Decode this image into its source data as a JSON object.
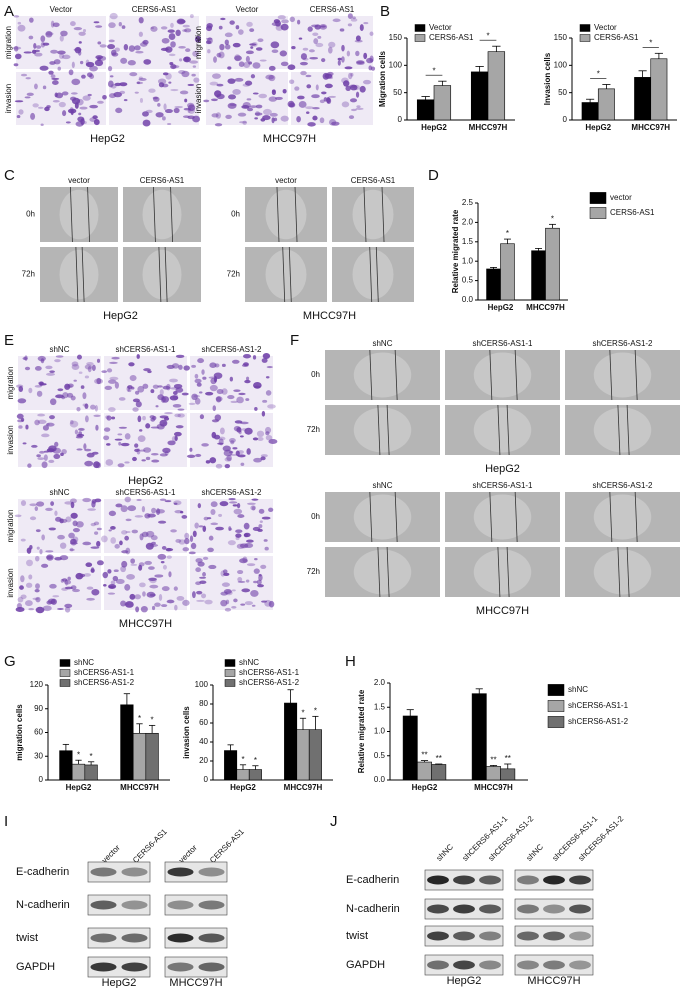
{
  "panel_letters": [
    "A",
    "B",
    "C",
    "D",
    "E",
    "F",
    "G",
    "H",
    "I",
    "J"
  ],
  "A": [
    {
      "columns": [
        "Vector",
        "CERS6-AS1"
      ],
      "rows": [
        "migration",
        "invasion"
      ],
      "caption": "HepG2"
    },
    {
      "columns": [
        "Vector",
        "CERS6-AS1"
      ],
      "rows": [
        "migration",
        "invasion"
      ],
      "caption": "MHCC97H"
    }
  ],
  "C": [
    {
      "columns": [
        "vector",
        "CERS6-AS1"
      ],
      "rows": [
        "0h",
        "72h"
      ],
      "caption": "HepG2"
    },
    {
      "columns": [
        "vector",
        "CERS6-AS1"
      ],
      "rows": [
        "0h",
        "72h"
      ],
      "caption": "MHCC97H"
    }
  ],
  "E": [
    {
      "columns": [
        "shNC",
        "shCERS6-AS1-1",
        "shCERS6-AS1-2"
      ],
      "rows": [
        "migration",
        "invasion"
      ],
      "caption": "HepG2"
    },
    {
      "columns": [
        "shNC",
        "shCERS6-AS1-1",
        "shCERS6-AS1-2"
      ],
      "rows": [
        "migration",
        "invasion"
      ],
      "caption": "MHCC97H"
    }
  ],
  "F": [
    {
      "columns": [
        "shNC",
        "shCERS6-AS1-1",
        "shCERS6-AS1-2"
      ],
      "rows": [
        "0h",
        "72h"
      ],
      "caption": "HepG2"
    },
    {
      "columns": [
        "shNC",
        "shCERS6-AS1-1",
        "shCERS6-AS1-2"
      ],
      "rows": [
        "0h",
        "72h"
      ],
      "caption": "MHCC97H"
    }
  ],
  "I": {
    "lanes": [
      "vector",
      "CERS6-AS1"
    ],
    "proteins": [
      "E-cadherin",
      "N-cadherin",
      "twist",
      "GAPDH"
    ],
    "captions": [
      "HepG2",
      "MHCC97H"
    ]
  },
  "J": {
    "lanes": [
      "shNC",
      "shCERS6-AS1-1",
      "shCERS6-AS1-2"
    ],
    "proteins": [
      "E-cadherin",
      "N-cadherin",
      "twist",
      "GAPDH"
    ],
    "captions": [
      "HepG2",
      "MHCC97H"
    ]
  },
  "chart_data": [
    {
      "type": "bar",
      "ylabel": "Migration cells",
      "categories": [
        "HepG2",
        "MHCC97H"
      ],
      "ylim": [
        0,
        150
      ],
      "yticks": [
        0,
        50,
        100,
        150
      ],
      "legend": "top",
      "annotation_style": "bracket",
      "series": [
        {
          "name": "Vector",
          "color": "#000000",
          "values": [
            37,
            88
          ],
          "errors": [
            6,
            10
          ]
        },
        {
          "name": "CERS6-AS1",
          "color": "#a6a6a6",
          "values": [
            63,
            125
          ],
          "errors": [
            8,
            10
          ],
          "annotations": [
            "*",
            "*"
          ]
        }
      ]
    },
    {
      "type": "bar",
      "ylabel": "Invasion cells",
      "categories": [
        "HepG2",
        "MHCC97H"
      ],
      "ylim": [
        0,
        150
      ],
      "yticks": [
        0,
        50,
        100,
        150
      ],
      "legend": "top",
      "annotation_style": "bracket",
      "series": [
        {
          "name": "Vector",
          "color": "#000000",
          "values": [
            32,
            78
          ],
          "errors": [
            6,
            12
          ]
        },
        {
          "name": "CERS6-AS1",
          "color": "#a6a6a6",
          "values": [
            57,
            112
          ],
          "errors": [
            8,
            10
          ],
          "annotations": [
            "*",
            "*"
          ]
        }
      ]
    },
    {
      "type": "bar",
      "ylabel": "Relative migrated rate",
      "categories": [
        "HepG2",
        "MHCC97H"
      ],
      "ylim": [
        0,
        2.5
      ],
      "yticks": [
        {
          "value": 0,
          "label": "0.0"
        },
        0.5,
        {
          "value": 1,
          "label": "1.0"
        },
        1.5,
        {
          "value": 2,
          "label": "2.0"
        },
        2.5
      ],
      "legend": "right",
      "annotation_style": "above",
      "series": [
        {
          "name": "vector",
          "color": "#000000",
          "values": [
            0.8,
            1.27
          ],
          "errors": [
            0.04,
            0.06
          ]
        },
        {
          "name": "CERS6-AS1",
          "color": "#a6a6a6",
          "values": [
            1.45,
            1.85
          ],
          "errors": [
            0.12,
            0.1
          ],
          "annotations": [
            "*",
            "*"
          ]
        }
      ]
    },
    {
      "type": "bar",
      "ylabel": "migration cells",
      "categories": [
        "HepG2",
        "MHCC97H"
      ],
      "ylim": [
        0,
        120
      ],
      "yticks": [
        0,
        30,
        60,
        90,
        120
      ],
      "legend": "top",
      "annotation_style": "above",
      "series": [
        {
          "name": "shNC",
          "color": "#000000",
          "values": [
            37,
            95
          ],
          "errors": [
            8,
            14
          ]
        },
        {
          "name": "shCERS6-AS1-1",
          "color": "#a6a6a6",
          "values": [
            20,
            59
          ],
          "errors": [
            5,
            12
          ],
          "annotations": [
            "*",
            "*"
          ]
        },
        {
          "name": "shCERS6-AS1-2",
          "color": "#707070",
          "values": [
            19,
            59
          ],
          "errors": [
            4,
            10
          ],
          "annotations": [
            "*",
            "*"
          ]
        }
      ]
    },
    {
      "type": "bar",
      "ylabel": "invasion cells",
      "categories": [
        "HepG2",
        "MHCC97H"
      ],
      "ylim": [
        0,
        100
      ],
      "yticks": [
        0,
        20,
        40,
        60,
        80,
        100
      ],
      "legend": "top",
      "annotation_style": "above",
      "series": [
        {
          "name": "shNC",
          "color": "#000000",
          "values": [
            31,
            81
          ],
          "errors": [
            6,
            14
          ]
        },
        {
          "name": "shCERS6-AS1-1",
          "color": "#a6a6a6",
          "values": [
            11,
            53
          ],
          "errors": [
            5,
            12
          ],
          "annotations": [
            "*",
            "*"
          ]
        },
        {
          "name": "shCERS6-AS1-2",
          "color": "#707070",
          "values": [
            11,
            53
          ],
          "errors": [
            4,
            14
          ],
          "annotations": [
            "*",
            "*"
          ]
        }
      ]
    },
    {
      "type": "bar",
      "ylabel": "Relative migrated rate",
      "categories": [
        "HepG2",
        "MHCC97H"
      ],
      "ylim": [
        0,
        2
      ],
      "yticks": [
        {
          "value": 0,
          "label": "0.0"
        },
        0.5,
        {
          "value": 1,
          "label": "1.0"
        },
        1.5,
        {
          "value": 2,
          "label": "2.0"
        }
      ],
      "legend": "right",
      "annotation_style": "above",
      "series": [
        {
          "name": "shNC",
          "color": "#000000",
          "values": [
            1.32,
            1.78
          ],
          "errors": [
            0.13,
            0.1
          ]
        },
        {
          "name": "shCERS6-AS1-1",
          "color": "#a6a6a6",
          "values": [
            0.37,
            0.28
          ],
          "errors": [
            0.03,
            0.02
          ],
          "annotations": [
            "**",
            "**"
          ]
        },
        {
          "name": "shCERS6-AS1-2",
          "color": "#707070",
          "values": [
            0.32,
            0.23
          ],
          "errors": [
            0.01,
            0.1
          ],
          "annotations": [
            "**",
            "**"
          ]
        }
      ]
    }
  ]
}
